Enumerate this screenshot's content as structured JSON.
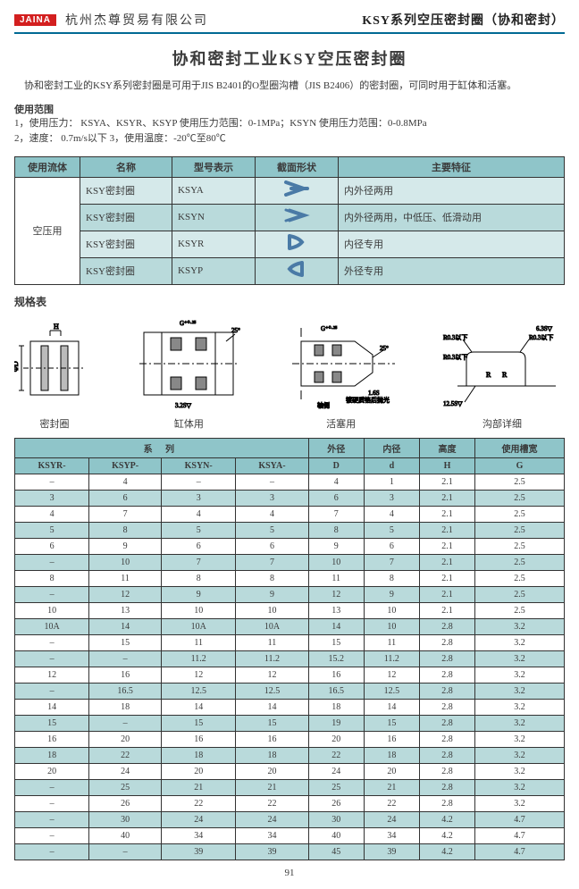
{
  "colors": {
    "accent": "#006994",
    "logo_bg": "#d31f1f",
    "hdr_bg": "#8fc5c9",
    "row_lt": "#d5e9ea",
    "row_dk": "#b9dadb",
    "border": "#333333",
    "text": "#3a3a3a"
  },
  "header": {
    "logo_text": "JAINA",
    "company": "杭州杰尊贸易有限公司",
    "page_title": "KSY系列空压密封圈（协和密封）"
  },
  "main_title": "协和密封工业KSY空压密封圈",
  "intro": "协和密封工业的KSY系列密封圈是可用于JIS B2401的O型圈沟槽（JIS B2406）的密封圈，可同时用于缸体和活塞。",
  "usage": {
    "label": "使用范围",
    "line1": "1，使用压力：  KSYA、KSYR、KSYP  使用压力范围：0-1MPa；KSYN 使用压力范围：0-0.8MPa",
    "line2": "2，速度：      0.7m/s以下    3，使用温度：-20℃至80℃"
  },
  "type_table": {
    "headers": [
      "使用流体",
      "名称",
      "型号表示",
      "截面形状",
      "主要特征"
    ],
    "fluid": "空压用",
    "rows": [
      {
        "name": "KSY密封圈",
        "model": "KSYA",
        "shape": "ksya",
        "feature": "内外径两用"
      },
      {
        "name": "KSY密封圈",
        "model": "KSYN",
        "shape": "ksyn",
        "feature": "内外径两用，中低压、低滑动用"
      },
      {
        "name": "KSY密封圈",
        "model": "KSYR",
        "shape": "ksyr",
        "feature": "内径专用"
      },
      {
        "name": "KSY密封圈",
        "model": "KSYP",
        "shape": "ksyp",
        "feature": "外径专用"
      }
    ]
  },
  "spec_label": "规格表",
  "diagrams": {
    "d1": "密封圈",
    "d2": "缸体用",
    "d3": "活塞用",
    "d4": "沟部详细"
  },
  "data_table": {
    "group_series": "系  列",
    "group_cols": [
      "外径",
      "内径",
      "高度",
      "使用槽宽"
    ],
    "series_cols": [
      "KSYR-",
      "KSYP-",
      "KSYN-",
      "KSYA-"
    ],
    "dim_cols": [
      "D",
      "d",
      "H",
      "G"
    ],
    "rows": [
      [
        "-",
        "4",
        "-",
        "-",
        "4",
        "1",
        "2.1",
        "2.5"
      ],
      [
        "3",
        "6",
        "3",
        "3",
        "6",
        "3",
        "2.1",
        "2.5"
      ],
      [
        "4",
        "7",
        "4",
        "4",
        "7",
        "4",
        "2.1",
        "2.5"
      ],
      [
        "5",
        "8",
        "5",
        "5",
        "8",
        "5",
        "2.1",
        "2.5"
      ],
      [
        "6",
        "9",
        "6",
        "6",
        "9",
        "6",
        "2.1",
        "2.5"
      ],
      [
        "-",
        "10",
        "7",
        "7",
        "10",
        "7",
        "2.1",
        "2.5"
      ],
      [
        "8",
        "11",
        "8",
        "8",
        "11",
        "8",
        "2.1",
        "2.5"
      ],
      [
        "-",
        "12",
        "9",
        "9",
        "12",
        "9",
        "2.1",
        "2.5"
      ],
      [
        "10",
        "13",
        "10",
        "10",
        "13",
        "10",
        "2.1",
        "2.5"
      ],
      [
        "10A",
        "14",
        "10A",
        "10A",
        "14",
        "10",
        "2.8",
        "3.2"
      ],
      [
        "-",
        "15",
        "11",
        "11",
        "15",
        "11",
        "2.8",
        "3.2"
      ],
      [
        "-",
        "-",
        "11.2",
        "11.2",
        "15.2",
        "11.2",
        "2.8",
        "3.2"
      ],
      [
        "12",
        "16",
        "12",
        "12",
        "16",
        "12",
        "2.8",
        "3.2"
      ],
      [
        "-",
        "16.5",
        "12.5",
        "12.5",
        "16.5",
        "12.5",
        "2.8",
        "3.2"
      ],
      [
        "14",
        "18",
        "14",
        "14",
        "18",
        "14",
        "2.8",
        "3.2"
      ],
      [
        "15",
        "-",
        "15",
        "15",
        "19",
        "15",
        "2.8",
        "3.2"
      ],
      [
        "16",
        "20",
        "16",
        "16",
        "20",
        "16",
        "2.8",
        "3.2"
      ],
      [
        "18",
        "22",
        "18",
        "18",
        "22",
        "18",
        "2.8",
        "3.2"
      ],
      [
        "20",
        "24",
        "20",
        "20",
        "24",
        "20",
        "2.8",
        "3.2"
      ],
      [
        "-",
        "25",
        "21",
        "21",
        "25",
        "21",
        "2.8",
        "3.2"
      ],
      [
        "-",
        "26",
        "22",
        "22",
        "26",
        "22",
        "2.8",
        "3.2"
      ],
      [
        "-",
        "30",
        "24",
        "24",
        "30",
        "24",
        "4.2",
        "4.7"
      ],
      [
        "-",
        "40",
        "34",
        "34",
        "40",
        "34",
        "4.2",
        "4.7"
      ],
      [
        "-",
        "-",
        "39",
        "39",
        "45",
        "39",
        "4.2",
        "4.7"
      ]
    ]
  },
  "page_number": "91"
}
